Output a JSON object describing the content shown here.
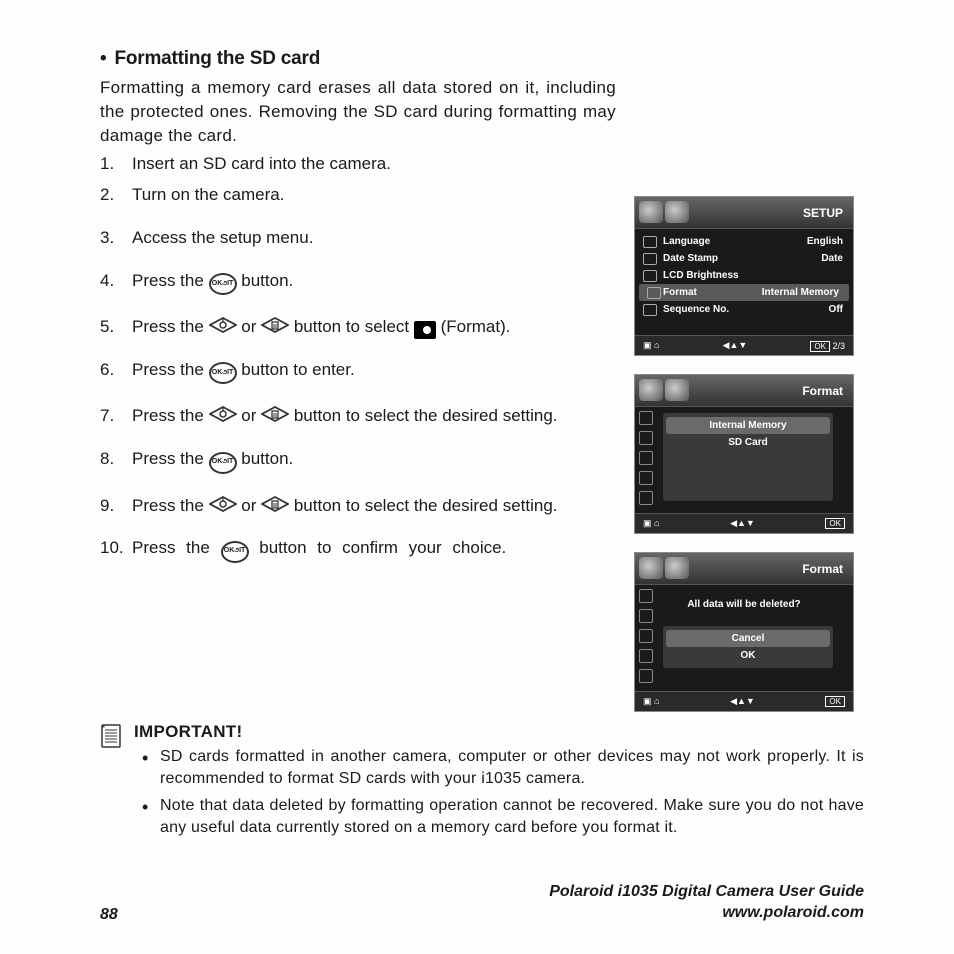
{
  "section": {
    "title": "Formatting the SD card",
    "intro": "Formatting a memory card erases all data stored on it, including the protected ones. Removing the SD card during formatting may damage the card."
  },
  "steps": [
    {
      "n": "1.",
      "text": "Insert an SD card into the camera."
    },
    {
      "n": "2.",
      "text": "Turn on the camera."
    },
    {
      "n": "3.",
      "text": "Access the setup menu."
    },
    {
      "n": "4.",
      "pre": "Press the ",
      "btn": "okedit",
      "post": " button."
    },
    {
      "n": "5.",
      "pre": "Press the ",
      "btn": "updown",
      "mid": " button to select ",
      "icon": "format",
      "post2": " (Format)."
    },
    {
      "n": "6.",
      "pre": "Press the ",
      "btn": "okedit",
      "post": " button to enter."
    },
    {
      "n": "7.",
      "pre": "Press the ",
      "btn": "updown",
      "post": " button to select the desired setting."
    },
    {
      "n": "8.",
      "pre": "Press the ",
      "btn": "okedit",
      "post": " button."
    },
    {
      "n": "9.",
      "pre": "Press the ",
      "btn": "updown",
      "post": " button to select the desired setting."
    },
    {
      "n": "10.",
      "pre": "Press the ",
      "btn": "okedit",
      "post": " button to confirm your choice.",
      "wide": true
    }
  ],
  "important": {
    "title": "IMPORTANT!",
    "items": [
      "SD cards formatted in another camera, computer or other devices may not work properly. It is recommended to format SD cards with your i1035 camera.",
      "Note that data deleted by formatting operation cannot be recovered. Make sure you do not have any useful data currently stored on a memory card before you format it."
    ]
  },
  "footer": {
    "page": "88",
    "guide_line1": "Polaroid i1035 Digital Camera User Guide",
    "guide_line2": "www.polaroid.com"
  },
  "lcd1": {
    "title": "SETUP",
    "rows": [
      {
        "label": "Language",
        "value": "English"
      },
      {
        "label": "Date Stamp",
        "value": "Date"
      },
      {
        "label": "LCD Brightness",
        "value": ""
      },
      {
        "label": "Format",
        "value": "Internal Memory",
        "sel": true
      },
      {
        "label": "Sequence No.",
        "value": "Off"
      }
    ],
    "footer_page": "2/3",
    "ok": "OK"
  },
  "lcd2": {
    "title": "Format",
    "options": [
      {
        "label": "Internal Memory",
        "sel": true
      },
      {
        "label": "SD Card"
      }
    ],
    "ok": "OK"
  },
  "lcd3": {
    "title": "Format",
    "message": "All data will be deleted?",
    "options": [
      {
        "label": "Cancel",
        "sel": true
      },
      {
        "label": "OK"
      }
    ],
    "ok": "OK"
  },
  "colors": {
    "text": "#1a1a1a",
    "lcd_bg": "#1a1a1a",
    "lcd_sel": "#5a5a5a",
    "lcd_border": "#888888"
  }
}
